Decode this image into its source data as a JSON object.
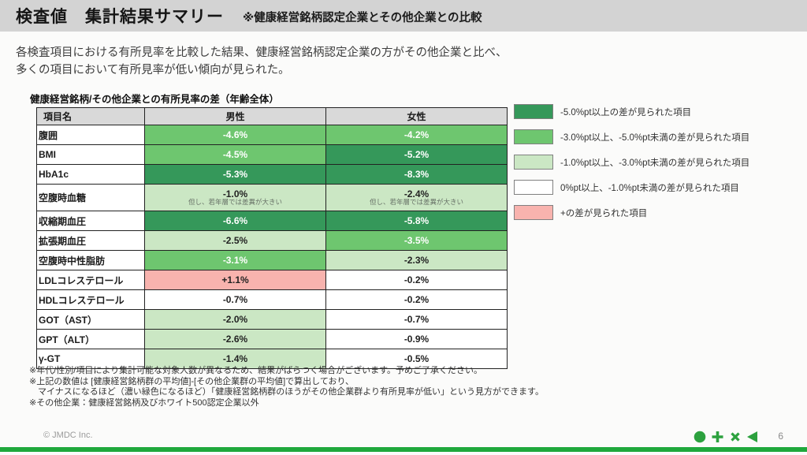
{
  "header": {
    "title": "検査値　集計結果サマリー",
    "subtitle": "※健康経営銘柄認定企業とその他企業との比較"
  },
  "intro": "各検査項目における有所見率を比較した結果、健康経営銘柄認定企業の方がその他企業と比べ、\n多くの項目において有所見率が低い傾向が見られた。",
  "table": {
    "title": "健康経営銘柄/その他企業との有所見率の差（年齢全体）",
    "columns": [
      "項目名",
      "男性",
      "女性"
    ],
    "rows": [
      {
        "item": "腹囲",
        "male": {
          "value": "-4.6%",
          "level": "mid"
        },
        "female": {
          "value": "-4.2%",
          "level": "mid"
        }
      },
      {
        "item": "BMI",
        "male": {
          "value": "-4.5%",
          "level": "mid"
        },
        "female": {
          "value": "-5.2%",
          "level": "dark"
        }
      },
      {
        "item": "HbA1c",
        "male": {
          "value": "-5.3%",
          "level": "dark"
        },
        "female": {
          "value": "-8.3%",
          "level": "dark"
        }
      },
      {
        "item": "空腹時血糖",
        "male": {
          "value": "-1.0%",
          "level": "light",
          "note": "但し、若年層では差異が大きい"
        },
        "female": {
          "value": "-2.4%",
          "level": "light",
          "note": "但し、若年層では差異が大きい"
        }
      },
      {
        "item": "収縮期血圧",
        "male": {
          "value": "-6.6%",
          "level": "dark"
        },
        "female": {
          "value": "-5.8%",
          "level": "dark"
        }
      },
      {
        "item": "拡張期血圧",
        "male": {
          "value": "-2.5%",
          "level": "light"
        },
        "female": {
          "value": "-3.5%",
          "level": "mid"
        }
      },
      {
        "item": "空腹時中性脂肪",
        "male": {
          "value": "-3.1%",
          "level": "mid"
        },
        "female": {
          "value": "-2.3%",
          "level": "light"
        }
      },
      {
        "item": "LDLコレステロール",
        "male": {
          "value": "+1.1%",
          "level": "plus"
        },
        "female": {
          "value": "-0.2%",
          "level": "none"
        }
      },
      {
        "item": "HDLコレステロール",
        "male": {
          "value": "-0.7%",
          "level": "none"
        },
        "female": {
          "value": "-0.2%",
          "level": "none"
        }
      },
      {
        "item": "GOT（AST）",
        "male": {
          "value": "-2.0%",
          "level": "light"
        },
        "female": {
          "value": "-0.7%",
          "level": "none"
        }
      },
      {
        "item": "GPT（ALT）",
        "male": {
          "value": "-2.6%",
          "level": "light"
        },
        "female": {
          "value": "-0.9%",
          "level": "none"
        }
      },
      {
        "item": "γ-GT",
        "male": {
          "value": "-1.4%",
          "level": "light"
        },
        "female": {
          "value": "-0.5%",
          "level": "none"
        }
      }
    ]
  },
  "legend": {
    "items": [
      {
        "level": "dark",
        "label": "-5.0%pt以上の差が見られた項目"
      },
      {
        "level": "mid",
        "label": "-3.0%pt以上、-5.0%pt未満の差が見られた項目"
      },
      {
        "level": "light",
        "label": "-1.0%pt以上、-3.0%pt未満の差が見られた項目"
      },
      {
        "level": "none",
        "label": "0%pt以上、-1.0%pt未満の差が見られた項目"
      },
      {
        "level": "plus",
        "label": "+の差が見られた項目"
      }
    ]
  },
  "footnotes": [
    "※年代/性別/項目により集計可能な対象人数が異なるため、結果がばらつく場合がございます。予めご了承ください。",
    "※上記の数値は [健康経営銘柄群の平均値]-[その他企業群の平均値]で算出しており、",
    "　マイナスになるほど（濃い緑色になるほど）「健康経営銘柄群のほうがその他企業群より有所見率が低い」という見方ができます。",
    "※その他企業：健康経営銘柄及びホワイト500認定企業以外"
  ],
  "footer": {
    "copyright": "© JMDC Inc.",
    "page": "6",
    "icons": [
      "circle-icon",
      "plus-icon",
      "x-icon",
      "triangle-left-icon"
    ]
  },
  "colors": {
    "dark_green": "#35985a",
    "mid_green": "#6ec66f",
    "light_green": "#cbe7c4",
    "pink": "#f8b3ae",
    "accent_green": "#1fa83c",
    "logo_green": "#2ca13e",
    "header_band": "#d3d3d3",
    "table_header": "#d9d9d9"
  }
}
